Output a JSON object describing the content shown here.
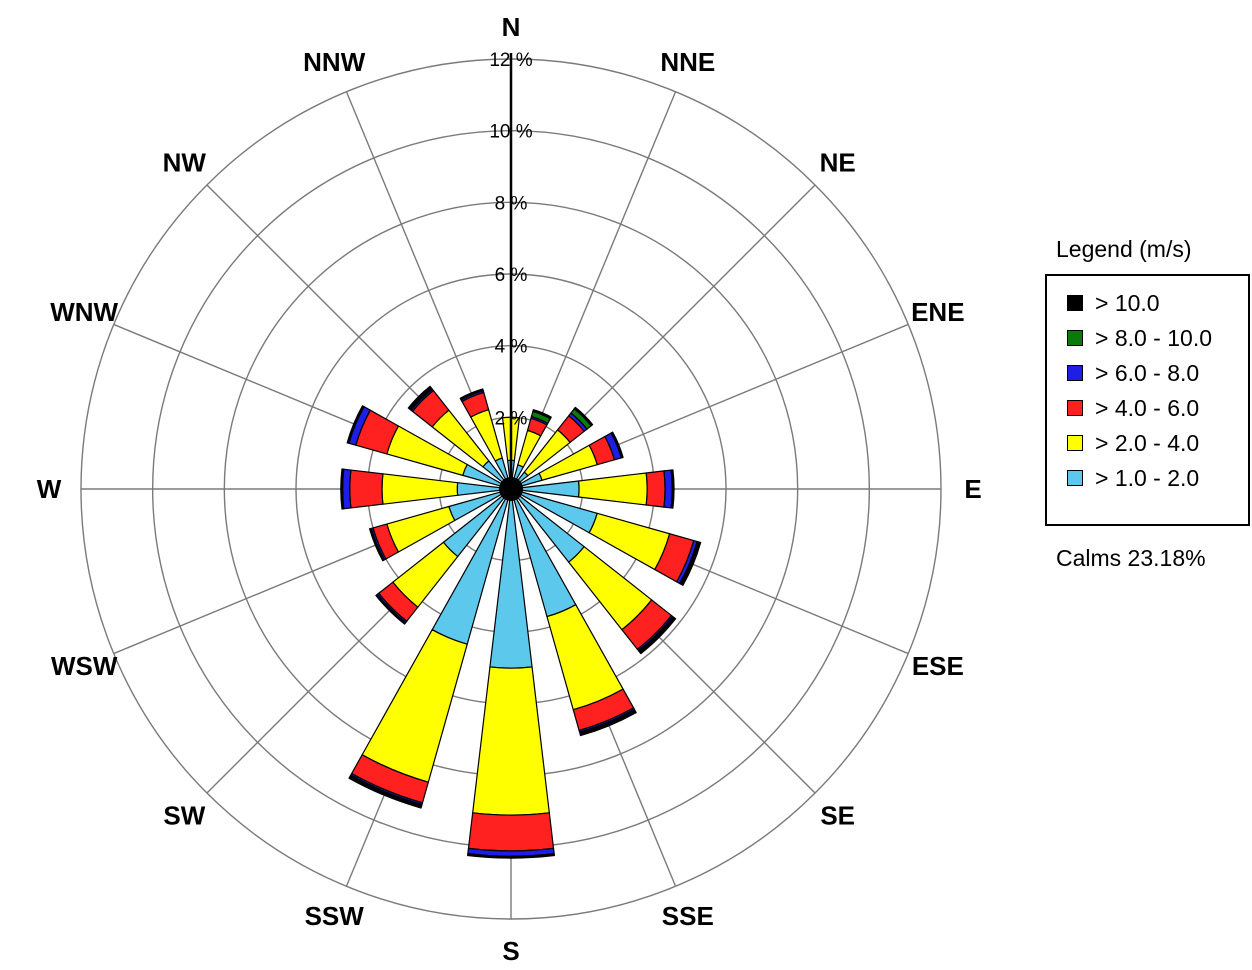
{
  "chart_data": {
    "type": "windrose",
    "unit": "%",
    "directions": [
      "N",
      "NNE",
      "NE",
      "ENE",
      "E",
      "ESE",
      "SE",
      "SSE",
      "S",
      "SSW",
      "SW",
      "WSW",
      "W",
      "WNW",
      "NW",
      "NNW"
    ],
    "radial_ticks": [
      {
        "value": 2,
        "label": "2 %"
      },
      {
        "value": 4,
        "label": "4 %"
      },
      {
        "value": 6,
        "label": "6 %"
      },
      {
        "value": 8,
        "label": "8 %"
      },
      {
        "value": 10,
        "label": "10 %"
      },
      {
        "value": 12,
        "label": "12 %"
      }
    ],
    "rmax": 12,
    "series": [
      {
        "name": "> 1.0 - 2.0",
        "color": "#5bc8ec",
        "values": [
          0.8,
          0.7,
          0.6,
          0.9,
          1.9,
          2.5,
          2.6,
          3.7,
          5.0,
          4.5,
          2.4,
          1.8,
          1.5,
          1.4,
          1.0,
          0.9
        ]
      },
      {
        "name": "> 2.0 - 4.0",
        "color": "#ffff00",
        "values": [
          1.2,
          1.0,
          1.5,
          1.6,
          1.9,
          2.1,
          2.4,
          2.7,
          4.1,
          4.0,
          1.8,
          1.8,
          2.1,
          2.2,
          1.8,
          1.4
        ]
      },
      {
        "name": "> 4.0 - 6.0",
        "color": "#ff2020",
        "values": [
          0.0,
          0.35,
          0.5,
          0.5,
          0.5,
          0.7,
          0.7,
          0.6,
          1.0,
          0.6,
          0.5,
          0.4,
          0.9,
          0.9,
          0.7,
          0.5
        ]
      },
      {
        "name": "> 6.0 - 8.0",
        "color": "#1e1ee6",
        "values": [
          0.0,
          0.05,
          0.1,
          0.2,
          0.2,
          0.1,
          0.05,
          0.05,
          0.15,
          0.05,
          0.05,
          0.05,
          0.2,
          0.2,
          0.05,
          0.05
        ]
      },
      {
        "name": "> 8.0 - 10.0",
        "color": "#0a7a0a",
        "values": [
          0.0,
          0.15,
          0.15,
          0.0,
          0.0,
          0.0,
          0.0,
          0.0,
          0.0,
          0.0,
          0.0,
          0.0,
          0.0,
          0.0,
          0.0,
          0.0
        ]
      },
      {
        "name": "> 10.0",
        "color": "#000000",
        "values": [
          0.0,
          0.05,
          0.05,
          0.05,
          0.05,
          0.1,
          0.1,
          0.1,
          0.05,
          0.1,
          0.05,
          0.05,
          0.05,
          0.05,
          0.1,
          0.05
        ]
      }
    ],
    "legend": {
      "title": "Legend (m/s)",
      "items": [
        {
          "label": "> 10.0",
          "color": "#000000"
        },
        {
          "label": "> 8.0 - 10.0",
          "color": "#0a7a0a"
        },
        {
          "label": "> 6.0 - 8.0",
          "color": "#1e1ee6"
        },
        {
          "label": "> 4.0 - 6.0",
          "color": "#ff2020"
        },
        {
          "label": "> 2.0 - 4.0",
          "color": "#ffff00"
        },
        {
          "label": "> 1.0 - 2.0",
          "color": "#5bc8ec"
        }
      ],
      "placement": "right"
    },
    "calms_label": "Calms 23.18%"
  }
}
